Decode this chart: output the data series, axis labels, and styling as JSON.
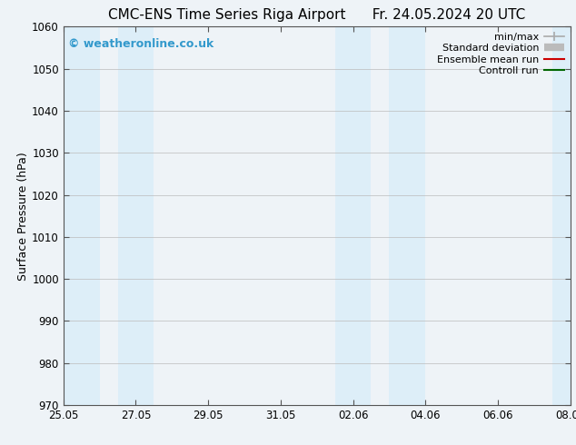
{
  "title_left": "CMC-ENS Time Series Riga Airport",
  "title_right": "Fr. 24.05.2024 20 UTC",
  "ylabel": "Surface Pressure (hPa)",
  "ylim": [
    970,
    1060
  ],
  "yticks": [
    970,
    980,
    990,
    1000,
    1010,
    1020,
    1030,
    1040,
    1050,
    1060
  ],
  "x_start_num": 0,
  "x_end_num": 14,
  "xtick_labels": [
    "25.05",
    "27.05",
    "29.05",
    "31.05",
    "02.06",
    "04.06",
    "06.06",
    "08.06"
  ],
  "xtick_positions": [
    0,
    2,
    4,
    6,
    8,
    10,
    12,
    14
  ],
  "shaded_bands": [
    {
      "x_start": 0.0,
      "x_end": 1.0
    },
    {
      "x_start": 1.5,
      "x_end": 2.5
    },
    {
      "x_start": 7.5,
      "x_end": 8.5
    },
    {
      "x_start": 9.0,
      "x_end": 10.0
    },
    {
      "x_start": 13.5,
      "x_end": 14.0
    }
  ],
  "shaded_color": "#ddeef8",
  "background_color": "#eef3f7",
  "plot_bg_color": "#eef3f7",
  "grid_color": "#bbbbbb",
  "watermark_text": "© weatheronline.co.uk",
  "watermark_color": "#3399cc",
  "legend_entries": [
    {
      "label": "min/max",
      "color": "#aaaaaa",
      "lw": 1.2
    },
    {
      "label": "Standard deviation",
      "color": "#bbbbbb",
      "lw": 5
    },
    {
      "label": "Ensemble mean run",
      "color": "#cc0000",
      "lw": 1.5
    },
    {
      "label": "Controll run",
      "color": "#006600",
      "lw": 1.5
    }
  ],
  "title_fontsize": 11,
  "axis_label_fontsize": 9,
  "tick_fontsize": 8.5,
  "legend_fontsize": 8
}
